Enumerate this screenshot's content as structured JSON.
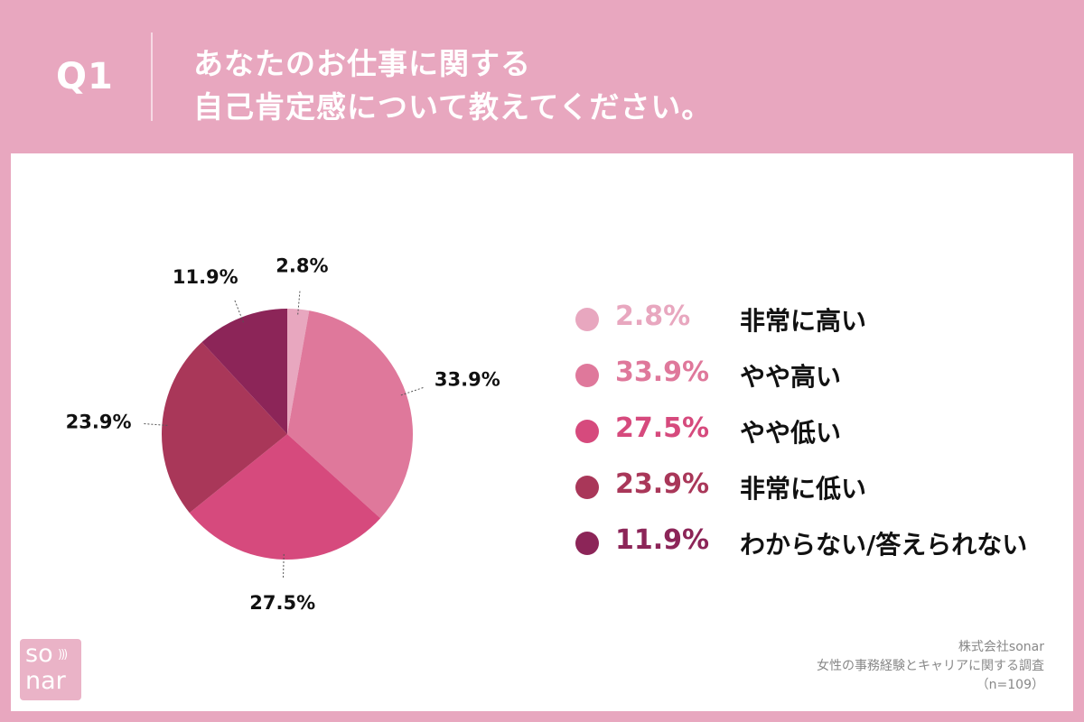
{
  "header": {
    "question_number": "Q1",
    "title_line1": "あなたのお仕事に関する",
    "title_line2": "自己肯定感について教えてください。"
  },
  "chart_data": {
    "type": "pie",
    "start_angle_deg": 0,
    "direction": "clockwise",
    "slices": [
      {
        "label": "非常に高い",
        "value": 2.8,
        "display": "2.8%",
        "color": "#e8a7bf"
      },
      {
        "label": "やや高い",
        "value": 33.9,
        "display": "33.9%",
        "color": "#df789b"
      },
      {
        "label": "やや低い",
        "value": 27.5,
        "display": "27.5%",
        "color": "#d64a7d"
      },
      {
        "label": "非常に低い",
        "value": 23.9,
        "display": "23.9%",
        "color": "#a93759"
      },
      {
        "label": "わからない/答えられない",
        "value": 11.9,
        "display": "11.9%",
        "color": "#8c2558"
      }
    ],
    "legend_position": "right"
  },
  "logo": {
    "line1": "so",
    "line2": "nar"
  },
  "source": {
    "company": "株式会社sonar",
    "survey": "女性の事務経験とキャリアに関する調査",
    "sample": "（n=109）"
  }
}
